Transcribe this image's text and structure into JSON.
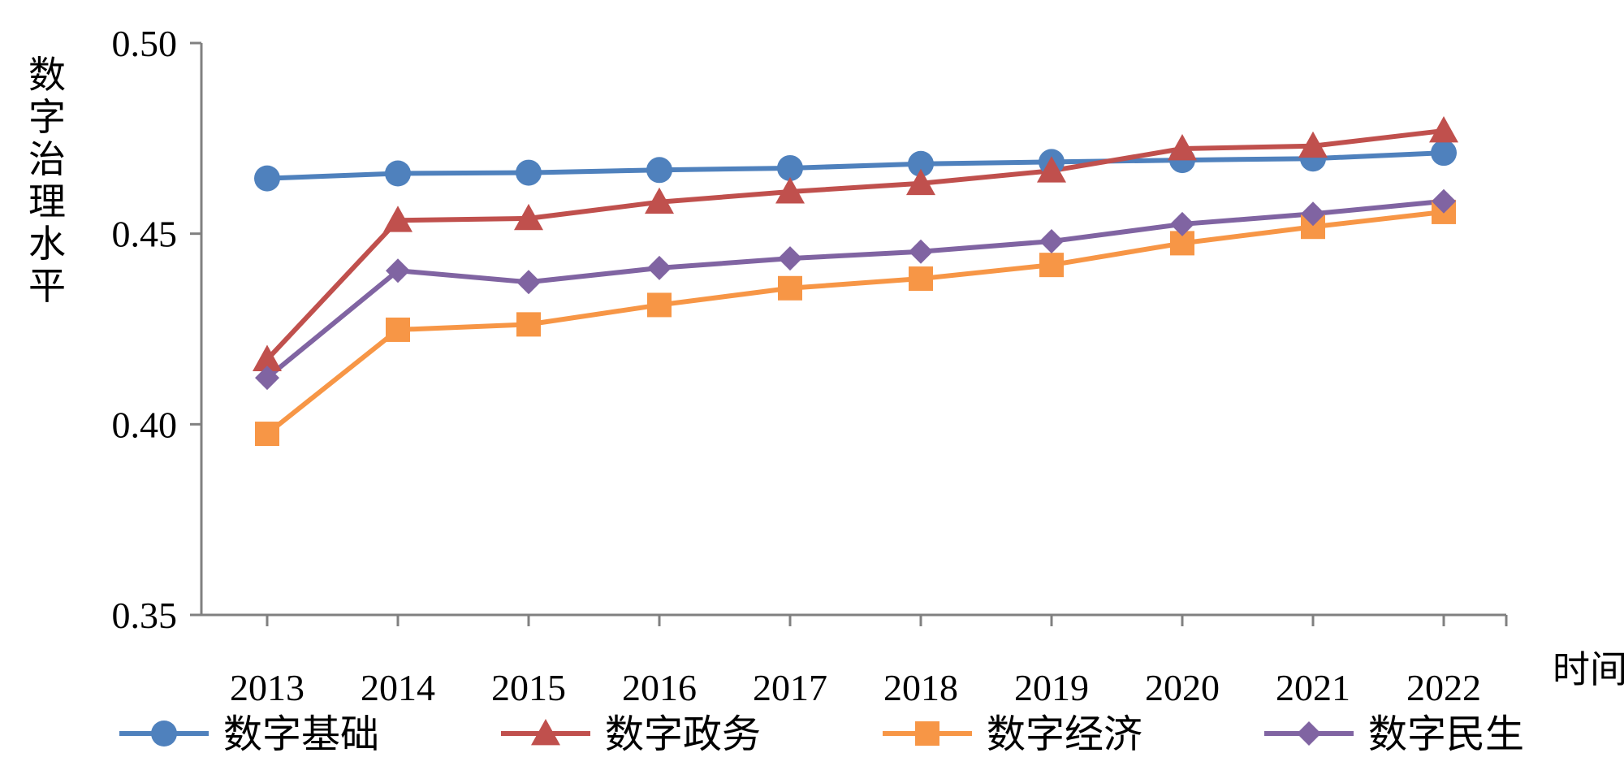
{
  "chart_data": {
    "type": "line",
    "title": "",
    "ylabel": "数字治理水平",
    "xlabel": "时间",
    "ylim": [
      0.35,
      0.5
    ],
    "yticks": [
      "0.35",
      "0.40",
      "0.45",
      "0.50"
    ],
    "yticks_values": [
      0.35,
      0.4,
      0.45,
      0.5
    ],
    "categories": [
      "2013",
      "2014",
      "2015",
      "2016",
      "2017",
      "2018",
      "2019",
      "2020",
      "2021",
      "2022"
    ],
    "legend_position": "bottom",
    "series": [
      {
        "name": "数字基础",
        "color": "#4F81BD",
        "marker": "circle",
        "values": [
          0.4645,
          0.4658,
          0.466,
          0.4667,
          0.4672,
          0.4683,
          0.4688,
          0.4693,
          0.4697,
          0.4712
        ]
      },
      {
        "name": "数字政务",
        "color": "#C0504D",
        "marker": "triangle",
        "values": [
          0.417,
          0.4535,
          0.454,
          0.4583,
          0.461,
          0.4632,
          0.4665,
          0.4723,
          0.473,
          0.477
        ]
      },
      {
        "name": "数字经济",
        "color": "#F79646",
        "marker": "square",
        "values": [
          0.3975,
          0.4248,
          0.4262,
          0.4313,
          0.4357,
          0.4382,
          0.4418,
          0.4475,
          0.4518,
          0.4557
        ]
      },
      {
        "name": "数字民生",
        "color": "#8064A2",
        "marker": "diamond",
        "values": [
          0.4122,
          0.4403,
          0.4373,
          0.441,
          0.4435,
          0.4453,
          0.448,
          0.4525,
          0.4552,
          0.4585
        ]
      }
    ]
  }
}
